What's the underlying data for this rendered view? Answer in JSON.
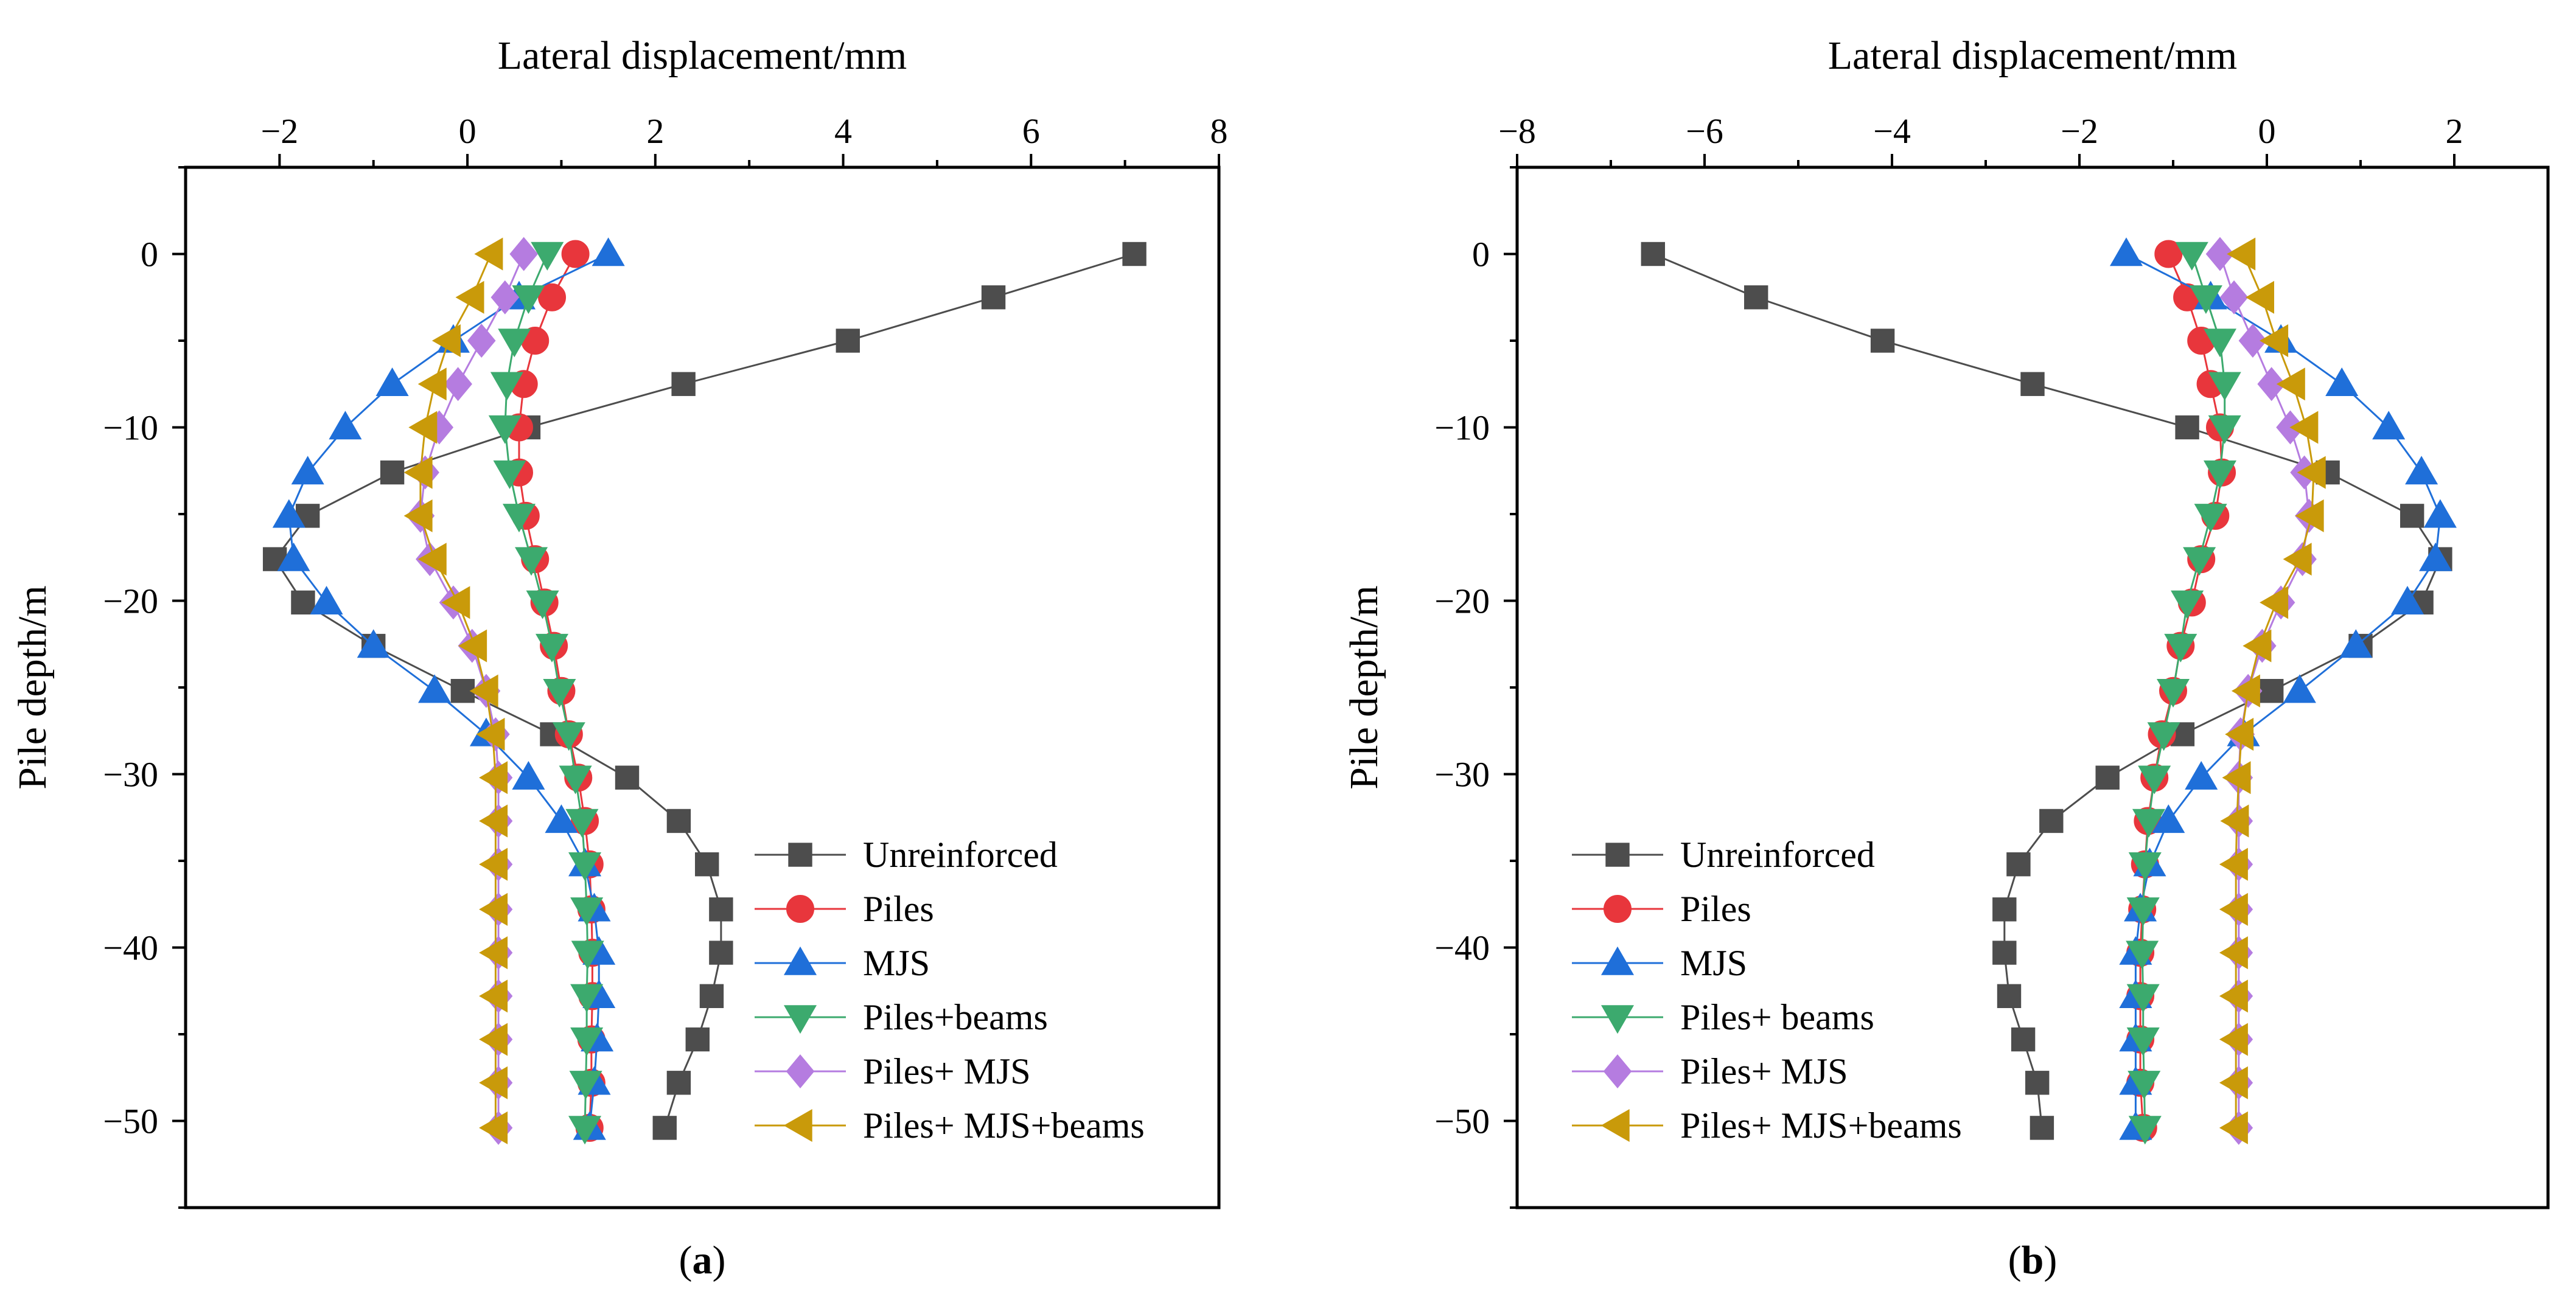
{
  "chart_data": [
    {
      "type": "line",
      "panel_label": "a",
      "xlabel": "Lateral displacement/mm",
      "ylabel": "Pile depth/m",
      "xlim": [
        -3,
        8
      ],
      "ylim": [
        -55,
        5
      ],
      "xticks": [
        -2,
        0,
        2,
        4,
        6,
        8
      ],
      "yticks": [
        0,
        -10,
        -20,
        -30,
        -40,
        -50
      ],
      "x_tick_labels": [
        "−2",
        "0",
        "2",
        "4",
        "6",
        "8"
      ],
      "y_tick_labels": [
        "0",
        "−10",
        "−20",
        "−30",
        "−40",
        "−50"
      ],
      "legend_position": "bottom-right",
      "y": [
        0,
        -2.5,
        -5,
        -7.5,
        -10,
        -12.6,
        -15.1,
        -17.6,
        -20.1,
        -22.6,
        -25.2,
        -27.7,
        -30.2,
        -32.7,
        -35.2,
        -37.8,
        -40.3,
        -42.8,
        -45.3,
        -47.8,
        -50.4
      ],
      "series": [
        {
          "name": "Unreinforced",
          "marker": "square",
          "color": "#4d4d4d",
          "values": [
            7.1,
            5.6,
            4.05,
            2.3,
            0.65,
            -0.8,
            -1.7,
            -2.05,
            -1.75,
            -1.0,
            -0.05,
            0.9,
            1.7,
            2.25,
            2.55,
            2.7,
            2.7,
            2.6,
            2.45,
            2.25,
            2.1
          ]
        },
        {
          "name": "Piles",
          "marker": "circle",
          "color": "#e8363c",
          "values": [
            1.15,
            0.9,
            0.72,
            0.6,
            0.55,
            0.55,
            0.62,
            0.72,
            0.82,
            0.92,
            1.0,
            1.08,
            1.18,
            1.25,
            1.3,
            1.32,
            1.33,
            1.33,
            1.32,
            1.32,
            1.3
          ]
        },
        {
          "name": "MJS",
          "marker": "triangle-up",
          "color": "#1f6fd9",
          "values": [
            1.5,
            0.55,
            -0.15,
            -0.8,
            -1.3,
            -1.7,
            -1.9,
            -1.85,
            -1.5,
            -1.0,
            -0.35,
            0.2,
            0.65,
            1.0,
            1.25,
            1.35,
            1.4,
            1.4,
            1.38,
            1.35,
            1.3
          ]
        },
        {
          "name": "Piles+beams",
          "marker": "triangle-down",
          "color": "#3caa6e",
          "values": [
            0.85,
            0.65,
            0.5,
            0.42,
            0.4,
            0.45,
            0.55,
            0.68,
            0.8,
            0.9,
            0.98,
            1.08,
            1.15,
            1.22,
            1.25,
            1.27,
            1.28,
            1.27,
            1.27,
            1.26,
            1.25
          ]
        },
        {
          "name": "Piles+ MJS",
          "marker": "diamond",
          "color": "#b57ce0",
          "values": [
            0.6,
            0.4,
            0.15,
            -0.1,
            -0.3,
            -0.45,
            -0.5,
            -0.4,
            -0.15,
            0.05,
            0.2,
            0.3,
            0.33,
            0.33,
            0.33,
            0.33,
            0.33,
            0.33,
            0.33,
            0.33,
            0.33
          ]
        },
        {
          "name": "Piles+ MJS+beams",
          "marker": "triangle-left",
          "color": "#c99a0a",
          "values": [
            0.25,
            0.05,
            -0.2,
            -0.35,
            -0.45,
            -0.5,
            -0.5,
            -0.35,
            -0.1,
            0.08,
            0.2,
            0.27,
            0.3,
            0.3,
            0.3,
            0.3,
            0.3,
            0.3,
            0.3,
            0.3,
            0.3
          ]
        }
      ]
    },
    {
      "type": "line",
      "panel_label": "b",
      "xlabel": "Lateral displacement/mm",
      "ylabel": "Pile depth/m",
      "xlim": [
        -8,
        3
      ],
      "ylim": [
        -55,
        5
      ],
      "xticks": [
        -8,
        -6,
        -4,
        -2,
        0,
        2
      ],
      "yticks": [
        0,
        -10,
        -20,
        -30,
        -40,
        -50
      ],
      "x_tick_labels": [
        "−8",
        "−6",
        "−4",
        "−2",
        "0",
        "2"
      ],
      "y_tick_labels": [
        "0",
        "−10",
        "−20",
        "−30",
        "−40",
        "−50"
      ],
      "legend_position": "bottom-left",
      "y": [
        0,
        -2.5,
        -5,
        -7.5,
        -10,
        -12.6,
        -15.1,
        -17.6,
        -20.1,
        -22.6,
        -25.2,
        -27.7,
        -30.2,
        -32.7,
        -35.2,
        -37.8,
        -40.3,
        -42.8,
        -45.3,
        -47.8,
        -50.4
      ],
      "series": [
        {
          "name": "Unreinforced",
          "marker": "square",
          "color": "#4d4d4d",
          "values": [
            -6.55,
            -5.45,
            -4.1,
            -2.5,
            -0.85,
            0.65,
            1.55,
            1.85,
            1.65,
            1.0,
            0.05,
            -0.9,
            -1.7,
            -2.3,
            -2.65,
            -2.8,
            -2.8,
            -2.75,
            -2.6,
            -2.45,
            -2.4
          ]
        },
        {
          "name": "Piles",
          "marker": "circle",
          "color": "#e8363c",
          "values": [
            -1.05,
            -0.85,
            -0.7,
            -0.6,
            -0.5,
            -0.48,
            -0.55,
            -0.7,
            -0.8,
            -0.92,
            -1.0,
            -1.12,
            -1.2,
            -1.27,
            -1.3,
            -1.33,
            -1.35,
            -1.35,
            -1.35,
            -1.35,
            -1.32
          ]
        },
        {
          "name": "MJS",
          "marker": "triangle-up",
          "color": "#1f6fd9",
          "values": [
            -1.5,
            -0.6,
            0.15,
            0.8,
            1.3,
            1.65,
            1.85,
            1.8,
            1.5,
            0.95,
            0.35,
            -0.25,
            -0.7,
            -1.05,
            -1.25,
            -1.35,
            -1.4,
            -1.4,
            -1.4,
            -1.4,
            -1.4
          ]
        },
        {
          "name": "Piles+ beams",
          "marker": "triangle-down",
          "color": "#3caa6e",
          "values": [
            -0.8,
            -0.65,
            -0.5,
            -0.45,
            -0.45,
            -0.5,
            -0.6,
            -0.72,
            -0.85,
            -0.92,
            -1.0,
            -1.1,
            -1.2,
            -1.26,
            -1.3,
            -1.32,
            -1.33,
            -1.32,
            -1.32,
            -1.31,
            -1.3
          ]
        },
        {
          "name": "Piles+ MJS",
          "marker": "diamond",
          "color": "#b57ce0",
          "values": [
            -0.5,
            -0.35,
            -0.15,
            0.05,
            0.25,
            0.4,
            0.45,
            0.38,
            0.15,
            -0.05,
            -0.2,
            -0.28,
            -0.3,
            -0.3,
            -0.3,
            -0.3,
            -0.3,
            -0.3,
            -0.3,
            -0.3,
            -0.3
          ]
        },
        {
          "name": "Piles+ MJS+beams",
          "marker": "triangle-left",
          "color": "#c99a0a",
          "values": [
            -0.25,
            -0.05,
            0.1,
            0.28,
            0.42,
            0.5,
            0.48,
            0.35,
            0.1,
            -0.08,
            -0.2,
            -0.27,
            -0.3,
            -0.32,
            -0.33,
            -0.33,
            -0.33,
            -0.33,
            -0.33,
            -0.33,
            -0.33
          ]
        }
      ]
    }
  ]
}
